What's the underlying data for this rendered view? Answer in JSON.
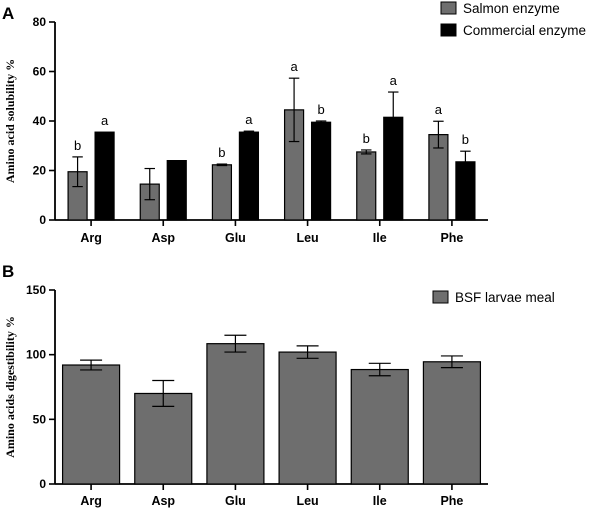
{
  "colors": {
    "salmon": "#6e6e6e",
    "commercial": "#000000",
    "bsf": "#6e6e6e",
    "axis": "#000000"
  },
  "chart_data": [
    {
      "panel": "A",
      "type": "bar",
      "title": "",
      "xlabel": "",
      "ylabel": "Amino acid solubility %",
      "ylim": [
        0,
        80
      ],
      "yticks": [
        0,
        20,
        40,
        60,
        80
      ],
      "categories": [
        "Arg",
        "Asp",
        "Glu",
        "Leu",
        "Ile",
        "Phe"
      ],
      "legend_position": "top-right",
      "series": [
        {
          "name": "Salmon enzyme",
          "color_key": "salmon",
          "values": [
            19.5,
            14.5,
            22.3,
            44.5,
            27.5,
            34.5
          ],
          "errors": [
            6,
            6.3,
            0.3,
            12.8,
            0.8,
            5.4
          ],
          "labels": [
            "b",
            "",
            "b",
            "a",
            "b",
            "a"
          ]
        },
        {
          "name": "Commercial enzyme",
          "color_key": "commercial",
          "values": [
            35.5,
            24,
            35.5,
            39.5,
            41.5,
            23.5
          ],
          "errors": [
            0,
            0,
            0.4,
            0.5,
            10.2,
            4.3
          ],
          "labels": [
            "a",
            "",
            "a",
            "b",
            "a",
            "b"
          ]
        }
      ]
    },
    {
      "panel": "B",
      "type": "bar",
      "title": "",
      "xlabel": "",
      "ylabel": "Amino acids digestibility %",
      "ylim": [
        0,
        150
      ],
      "yticks": [
        0,
        50,
        100,
        150
      ],
      "categories": [
        "Arg",
        "Asp",
        "Glu",
        "Leu",
        "Ile",
        "Phe"
      ],
      "legend_position": "top-right",
      "series": [
        {
          "name": "BSF larvae meal",
          "color_key": "bsf",
          "values": [
            92,
            70,
            108.5,
            102,
            88.5,
            94.5
          ],
          "errors": [
            3.8,
            10,
            6.5,
            4.8,
            4.8,
            4.5
          ],
          "labels": [
            "",
            "",
            "",
            "",
            "",
            ""
          ]
        }
      ]
    }
  ]
}
